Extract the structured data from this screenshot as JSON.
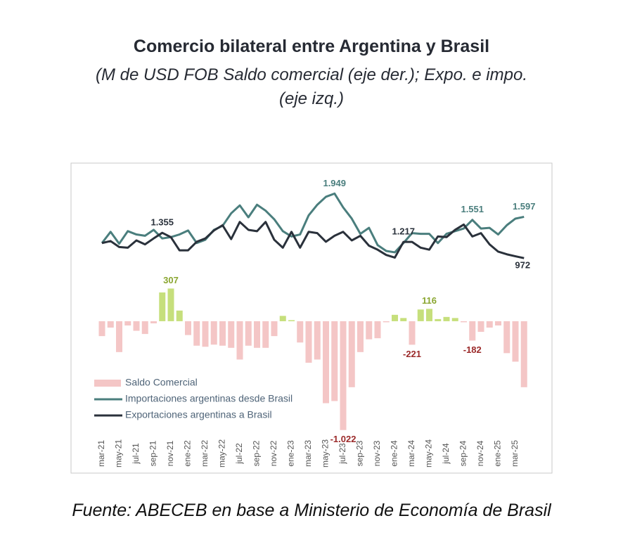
{
  "chart_data": {
    "type": "bar-line",
    "title": "Comercio bilateral entre Argentina y Brasil",
    "subtitle": "(M de USD FOB Saldo comercial (eje der.); Expo. e impo. (eje izq.)",
    "source": "Fuente: ABECEB en base a Ministerio de Economía de Brasil",
    "categories": [
      "mar-21",
      null,
      "may-21",
      null,
      "jul-21",
      null,
      "sep-21",
      null,
      "nov-21",
      null,
      "ene-22",
      null,
      "mar-22",
      null,
      "may-22",
      null,
      "jul-22",
      null,
      "sep-22",
      null,
      "nov-22",
      null,
      "ene-23",
      null,
      "mar-23",
      null,
      "may-23",
      null,
      "jul-23",
      null,
      "sep-23",
      null,
      "nov-23",
      null,
      "ene-24",
      null,
      "mar-24",
      null,
      "may-24",
      null,
      "jul-24",
      null,
      "sep-24",
      null,
      "nov-24",
      null,
      "ene-25",
      null,
      "mar-25",
      null
    ],
    "ylim": [
      -2270,
      2410
    ],
    "y2lim": [
      -1420,
      1485
    ],
    "legend": "lower left",
    "series": [
      {
        "name": "Saldo Comercial",
        "type": "bar",
        "axis": "y2",
        "color": "#f4c6c6",
        "positive_color": "#c6df7c",
        "label_color": "#9b2a2a",
        "positive_label_color": "#8aa630",
        "values": [
          -140,
          -60,
          -290,
          -40,
          -90,
          -120,
          -20,
          270,
          307,
          100,
          -130,
          -230,
          -240,
          -220,
          -230,
          -250,
          -360,
          -230,
          -250,
          -250,
          -140,
          50,
          10,
          -200,
          -390,
          -360,
          -770,
          -750,
          -1022,
          -620,
          -290,
          -170,
          -160,
          -10,
          60,
          30,
          -221,
          110,
          116,
          20,
          40,
          30,
          -10,
          -182,
          -100,
          -60,
          -40,
          -300,
          -380,
          -620
        ],
        "value_labels": [
          null,
          null,
          null,
          null,
          null,
          null,
          null,
          null,
          "307",
          null,
          null,
          null,
          null,
          null,
          null,
          null,
          null,
          null,
          null,
          null,
          null,
          null,
          null,
          null,
          null,
          null,
          null,
          null,
          "-1.022",
          null,
          null,
          null,
          null,
          null,
          null,
          null,
          "-221",
          null,
          "116",
          null,
          null,
          null,
          null,
          "-182",
          null,
          null,
          null,
          null,
          null,
          null
        ]
      },
      {
        "name": "Importaciones argentinas desde Brasil",
        "type": "line",
        "color": "#4a7e7d",
        "values": [
          1200,
          1370,
          1190,
          1380,
          1330,
          1310,
          1400,
          1270,
          1290,
          1330,
          1390,
          1200,
          1250,
          1400,
          1460,
          1650,
          1770,
          1590,
          1780,
          1690,
          1560,
          1380,
          1300,
          1330,
          1620,
          1780,
          1900,
          1949,
          1740,
          1570,
          1340,
          1430,
          1170,
          1080,
          1060,
          1200,
          1350,
          1340,
          1340,
          1200,
          1340,
          1380,
          1420,
          1551,
          1420,
          1430,
          1330,
          1470,
          1570,
          1597
        ],
        "value_labels": [
          null,
          null,
          null,
          null,
          null,
          null,
          null,
          null,
          null,
          null,
          null,
          null,
          null,
          null,
          null,
          null,
          null,
          null,
          null,
          null,
          null,
          null,
          null,
          null,
          null,
          null,
          null,
          "1.949",
          null,
          null,
          null,
          null,
          null,
          null,
          null,
          null,
          null,
          null,
          null,
          null,
          null,
          null,
          null,
          "1.551",
          null,
          null,
          null,
          null,
          null,
          "1.597"
        ]
      },
      {
        "name": "Exportaciones argentinas a Brasil",
        "type": "line",
        "color": "#2a313b",
        "values": [
          1200,
          1230,
          1140,
          1130,
          1240,
          1180,
          1270,
          1355,
          1290,
          1090,
          1090,
          1220,
          1270,
          1390,
          1470,
          1260,
          1520,
          1400,
          1380,
          1520,
          1250,
          1130,
          1370,
          1130,
          1370,
          1350,
          1220,
          1310,
          1370,
          1240,
          1310,
          1160,
          1100,
          1020,
          980,
          1217,
          1217,
          1130,
          1100,
          1300,
          1290,
          1400,
          1480,
          1300,
          1350,
          1180,
          1070,
          1030,
          1000,
          972
        ],
        "value_labels": [
          null,
          null,
          null,
          null,
          null,
          null,
          null,
          "1.355",
          null,
          null,
          null,
          null,
          null,
          null,
          null,
          null,
          null,
          null,
          null,
          null,
          null,
          null,
          null,
          null,
          null,
          null,
          null,
          null,
          null,
          null,
          null,
          null,
          null,
          null,
          null,
          "1.217",
          null,
          null,
          null,
          null,
          null,
          null,
          null,
          null,
          null,
          null,
          null,
          null,
          null,
          "972"
        ]
      }
    ]
  }
}
